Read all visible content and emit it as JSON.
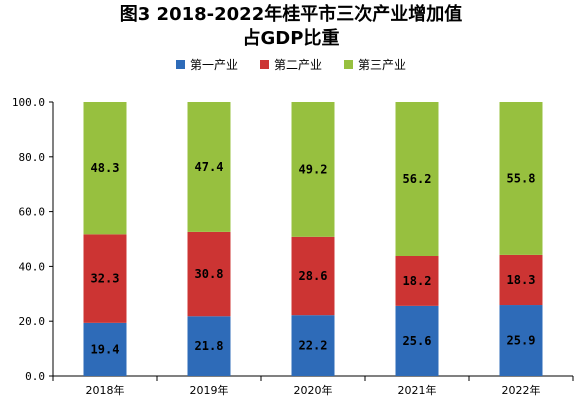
{
  "title_line1": "图3 2018-2022年桂平市三次产业增加值",
  "title_line2": "占GDP比重",
  "chart_data": {
    "type": "bar",
    "stacked": true,
    "categories": [
      "2018年",
      "2019年",
      "2020年",
      "2021年",
      "2022年"
    ],
    "series": [
      {
        "name": "第一产业",
        "color": "#2e6bb8",
        "values": [
          19.4,
          21.8,
          22.2,
          25.6,
          25.9
        ]
      },
      {
        "name": "第二产业",
        "color": "#cc3433",
        "values": [
          32.3,
          30.8,
          28.6,
          18.2,
          18.3
        ]
      },
      {
        "name": "第三产业",
        "color": "#97c03f",
        "values": [
          48.3,
          47.4,
          49.2,
          56.2,
          55.8
        ]
      }
    ],
    "ylim": [
      0,
      100
    ],
    "yticks": [
      "0.0",
      "20.0",
      "40.0",
      "60.0",
      "80.0",
      "100.0"
    ],
    "legend": "top-center",
    "grid": false
  }
}
